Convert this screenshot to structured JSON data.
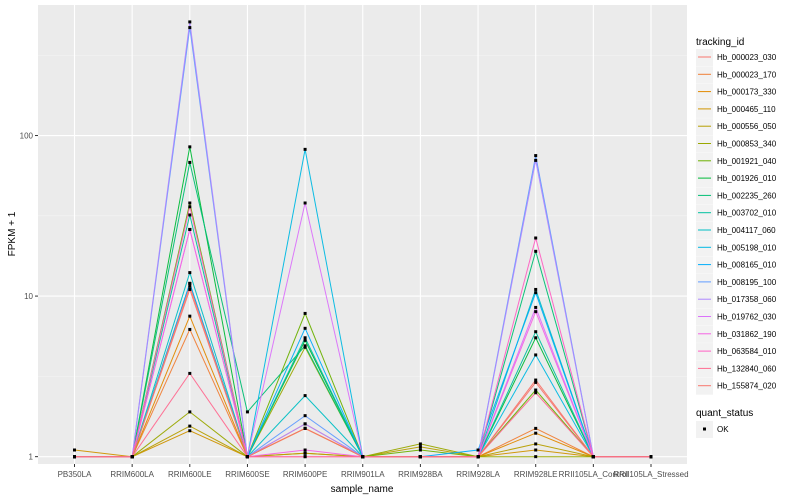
{
  "chart_data": {
    "type": "line",
    "xlabel": "sample_name",
    "ylabel": "FPKM + 1",
    "y_scale": "log10",
    "ylim": [
      0.9,
      650
    ],
    "y_ticks": [
      1,
      10,
      100
    ],
    "y_tick_labels": [
      "1",
      "10",
      "100"
    ],
    "grid": true,
    "legend_position": "right",
    "categories": [
      "PB350LA",
      "RRIM600LA",
      "RRIM600LE",
      "RRIM600SE",
      "RRIM600PE",
      "RRIM901LA",
      "RRIM928BA",
      "RRIM928LA",
      "RRIM928LE",
      "RRII105LA_Control",
      "RRII105LA_Stressed"
    ],
    "legend": {
      "title": "tracking_id",
      "entries": [
        "Hb_000023_030",
        "Hb_000023_170",
        "Hb_000173_330",
        "Hb_000465_110",
        "Hb_000556_050",
        "Hb_000853_340",
        "Hb_001921_040",
        "Hb_001926_010",
        "Hb_002235_260",
        "Hb_003702_010",
        "Hb_004117_060",
        "Hb_005198_010",
        "Hb_008165_010",
        "Hb_008195_100",
        "Hb_017358_060",
        "Hb_019762_030",
        "Hb_031862_190",
        "Hb_063584_010",
        "Hb_132840_060",
        "Hb_155874_020"
      ]
    },
    "shape_legend": {
      "title": "quant_status",
      "entries": [
        "OK"
      ]
    },
    "series": [
      {
        "name": "Hb_000023_030",
        "color": "#F8766D",
        "values": [
          1.0,
          1.0,
          11.0,
          1.0,
          1.6,
          1.0,
          1.0,
          1.0,
          2.9,
          1.0,
          1.0
        ]
      },
      {
        "name": "Hb_000023_170",
        "color": "#F07F37",
        "values": [
          1.0,
          1.0,
          6.2,
          1.0,
          1.5,
          1.0,
          1.0,
          1.0,
          1.5,
          1.0,
          1.0
        ]
      },
      {
        "name": "Hb_000173_330",
        "color": "#E38900",
        "values": [
          1.0,
          1.0,
          7.5,
          1.0,
          1.5,
          1.0,
          1.0,
          1.0,
          1.4,
          1.0,
          1.0
        ]
      },
      {
        "name": "Hb_000465_110",
        "color": "#D09400",
        "values": [
          1.1,
          1.0,
          1.45,
          1.0,
          1.05,
          1.0,
          1.0,
          1.0,
          1.1,
          1.0,
          1.0
        ]
      },
      {
        "name": "Hb_000556_050",
        "color": "#B79F00",
        "values": [
          1.0,
          1.0,
          1.55,
          1.0,
          1.05,
          1.0,
          1.15,
          1.0,
          1.2,
          1.0,
          1.0
        ]
      },
      {
        "name": "Hb_000853_340",
        "color": "#9AA800",
        "values": [
          1.0,
          1.0,
          1.9,
          1.0,
          4.8,
          1.0,
          1.2,
          1.0,
          1.0,
          1.0,
          1.0
        ]
      },
      {
        "name": "Hb_001921_040",
        "color": "#6BB100",
        "values": [
          1.0,
          1.0,
          38.0,
          1.0,
          7.8,
          1.0,
          1.1,
          1.0,
          2.6,
          1.0,
          1.0
        ]
      },
      {
        "name": "Hb_001926_010",
        "color": "#00BA38",
        "values": [
          1.0,
          1.0,
          85.0,
          1.0,
          5.3,
          1.0,
          1.0,
          1.0,
          5.5,
          1.0,
          1.0
        ]
      },
      {
        "name": "Hb_002235_260",
        "color": "#00BF74",
        "values": [
          1.0,
          1.0,
          68.0,
          1.9,
          4.9,
          1.0,
          1.0,
          1.0,
          19.0,
          1.0,
          1.0
        ]
      },
      {
        "name": "Hb_003702_010",
        "color": "#00C19F",
        "values": [
          1.0,
          1.0,
          32.0,
          1.0,
          5.5,
          1.0,
          1.0,
          1.0,
          6.0,
          1.0,
          1.0
        ]
      },
      {
        "name": "Hb_004117_060",
        "color": "#00BFC4",
        "values": [
          1.0,
          1.0,
          14.0,
          1.0,
          2.4,
          1.0,
          1.0,
          1.0,
          11.0,
          1.0,
          1.0
        ]
      },
      {
        "name": "Hb_005198_010",
        "color": "#00B9E3",
        "values": [
          1.0,
          1.0,
          12.0,
          1.0,
          82.0,
          1.0,
          1.0,
          1.0,
          4.3,
          1.0,
          1.0
        ]
      },
      {
        "name": "Hb_008165_010",
        "color": "#00ADFA",
        "values": [
          1.0,
          1.0,
          12.0,
          1.0,
          6.3,
          1.0,
          1.0,
          1.1,
          10.5,
          1.0,
          1.0
        ]
      },
      {
        "name": "Hb_008195_100",
        "color": "#619CFF",
        "values": [
          1.0,
          1.0,
          470.0,
          1.0,
          1.8,
          1.0,
          1.0,
          1.0,
          75.0,
          1.0,
          1.0
        ]
      },
      {
        "name": "Hb_017358_060",
        "color": "#AE87FF",
        "values": [
          1.0,
          1.0,
          510.0,
          1.0,
          1.6,
          1.0,
          1.0,
          1.0,
          70.0,
          1.0,
          1.0
        ]
      },
      {
        "name": "Hb_019762_030",
        "color": "#DB72FB",
        "values": [
          1.0,
          1.0,
          26.0,
          1.0,
          38.0,
          1.0,
          1.0,
          1.0,
          8.5,
          1.0,
          1.0
        ]
      },
      {
        "name": "Hb_031862_190",
        "color": "#F564E3",
        "values": [
          1.0,
          1.0,
          26.0,
          1.0,
          1.1,
          1.0,
          1.0,
          1.0,
          8.0,
          1.0,
          1.0
        ]
      },
      {
        "name": "Hb_063584_010",
        "color": "#FF61C3",
        "values": [
          1.0,
          1.0,
          36.0,
          1.0,
          1.0,
          1.0,
          1.0,
          1.0,
          23.0,
          1.0,
          1.0
        ]
      },
      {
        "name": "Hb_132840_060",
        "color": "#FF6C91",
        "values": [
          1.0,
          1.0,
          3.3,
          1.0,
          1.0,
          1.0,
          1.0,
          1.0,
          2.5,
          1.0,
          1.0
        ]
      },
      {
        "name": "Hb_155874_020",
        "color": "#F8766D",
        "values": [
          1.0,
          1.0,
          11.5,
          1.0,
          1.5,
          1.0,
          1.0,
          1.0,
          3.0,
          1.0,
          1.0
        ]
      }
    ]
  }
}
